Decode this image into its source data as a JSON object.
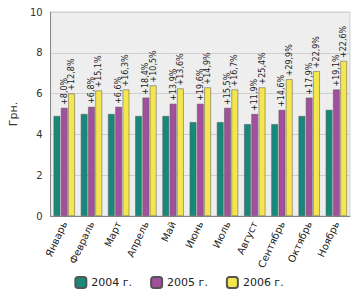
{
  "chart_data": {
    "type": "bar",
    "y_label": "Грн.",
    "categories": [
      "Январь",
      "Февраль",
      "Март",
      "Апрель",
      "Май",
      "Июнь",
      "Июль",
      "Август",
      "Сентябрь",
      "Октябрь",
      "Ноябрь"
    ],
    "series": [
      {
        "name": "2004 г.",
        "color": "#17897b",
        "values": [
          4.9,
          5.0,
          5.0,
          4.9,
          4.9,
          4.6,
          4.6,
          4.5,
          4.5,
          4.9,
          5.2
        ]
      },
      {
        "name": "2005 г.",
        "color": "#a24f9c",
        "values": [
          5.3,
          5.35,
          5.35,
          5.8,
          5.5,
          5.5,
          5.3,
          5.0,
          5.2,
          5.8,
          6.2
        ],
        "annotations": [
          "+8,0%",
          "+6,8%",
          "+6,6%",
          "+18,4%",
          "+13,9%",
          "+19,6%",
          "+15,5%",
          "+11,9%",
          "+14,6%",
          "+17,9%",
          "+19,1%"
        ]
      },
      {
        "name": "2006 г.",
        "color": "#f4e64c",
        "values": [
          6.0,
          6.15,
          6.2,
          6.4,
          6.25,
          6.3,
          6.2,
          6.3,
          6.7,
          7.1,
          7.6
        ],
        "annotations": [
          "+12,8%",
          "+15,1%",
          "+16,3%",
          "+10,5%",
          "+13,6%",
          "+14,9%",
          "+16,7%",
          "+25,4%",
          "+29,9%",
          "+22,9%",
          "+22,6%"
        ]
      }
    ],
    "ylim": [
      0,
      10
    ],
    "yticks": [
      0,
      2,
      4,
      6,
      8,
      10
    ],
    "grid": true,
    "legend": "bottom"
  }
}
